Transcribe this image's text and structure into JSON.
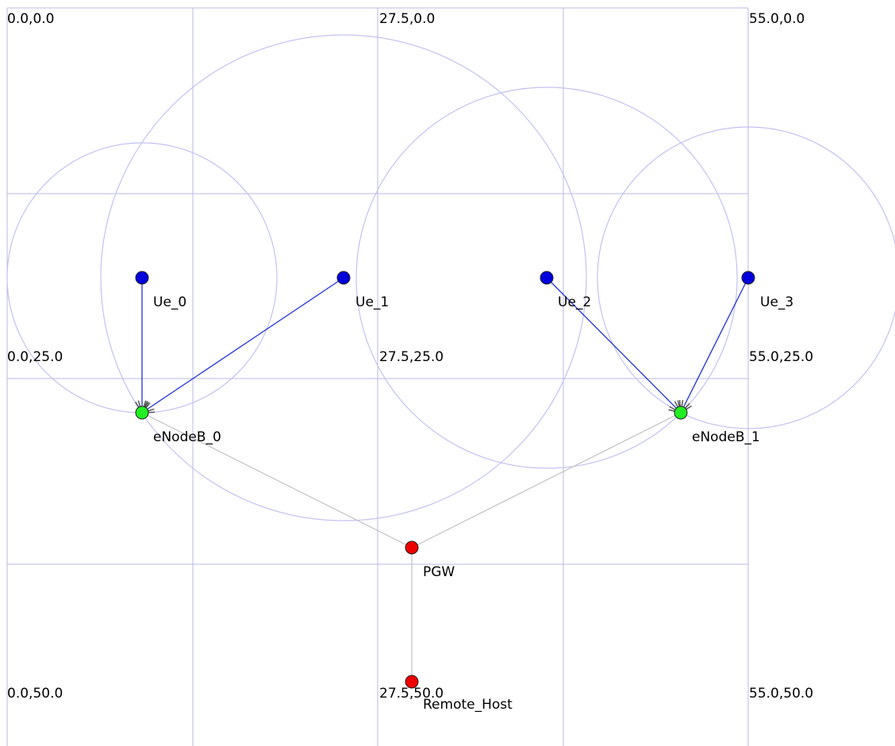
{
  "canvas": {
    "background": "#ffffff",
    "grid_color": "#b9b9e6",
    "range_color": "#c2c2f2",
    "wired_link_color": "#c0c0c0",
    "wireless_link_color": "#2233dd",
    "arrow_color": "#555555"
  },
  "grid_labels": [
    {
      "text": "0.0,0.0"
    },
    {
      "text": "27.5,0.0"
    },
    {
      "text": "55.0,0.0"
    },
    {
      "text": "0.0,25.0"
    },
    {
      "text": "27.5,25.0"
    },
    {
      "text": "55.0,25.0"
    },
    {
      "text": "0.0,50.0"
    },
    {
      "text": "27.5,50.0"
    },
    {
      "text": "55.0,50.0"
    }
  ],
  "nodes": [
    {
      "id": "ue0",
      "label": "Ue_0",
      "type": "ue",
      "color": "#0000dd"
    },
    {
      "id": "ue1",
      "label": "Ue_1",
      "type": "ue",
      "color": "#0000dd"
    },
    {
      "id": "ue2",
      "label": "Ue_2",
      "type": "ue",
      "color": "#0000dd"
    },
    {
      "id": "ue3",
      "label": "Ue_3",
      "type": "ue",
      "color": "#0000dd"
    },
    {
      "id": "enb0",
      "label": "eNodeB_0",
      "type": "enodeb",
      "color": "#22ee22"
    },
    {
      "id": "enb1",
      "label": "eNodeB_1",
      "type": "enodeb",
      "color": "#22ee22"
    },
    {
      "id": "pgw",
      "label": "PGW",
      "type": "pgw",
      "color": "#ee0000"
    },
    {
      "id": "rh",
      "label": "Remote_Host",
      "type": "host",
      "color": "#ee0000"
    }
  ],
  "wired_links": [
    {
      "from": "enb0",
      "to": "pgw"
    },
    {
      "from": "enb1",
      "to": "pgw"
    },
    {
      "from": "pgw",
      "to": "rh"
    }
  ],
  "wireless_links": [
    {
      "from": "ue0",
      "to": "enb0"
    },
    {
      "from": "ue1",
      "to": "enb0"
    },
    {
      "from": "ue2",
      "to": "enb1"
    },
    {
      "from": "ue3",
      "to": "enb1"
    }
  ]
}
